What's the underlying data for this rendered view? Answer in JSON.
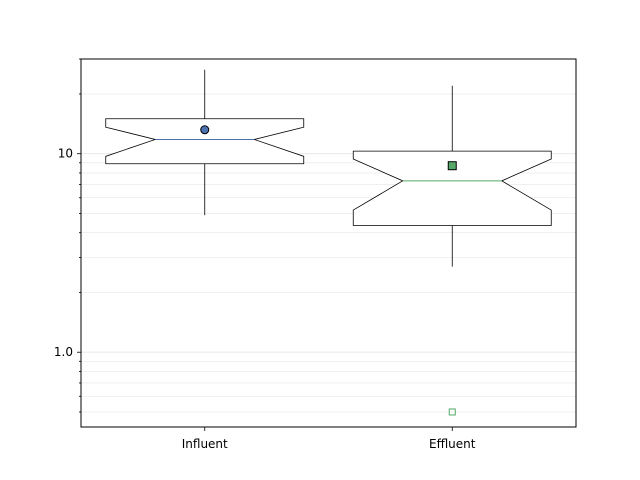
{
  "chart_data": {
    "type": "boxplot",
    "title": "",
    "xlabel": "",
    "ylabel": "",
    "yscale": "log",
    "ylim": [
      0.42,
      30
    ],
    "grid": {
      "y_major": true,
      "y_minor": true,
      "x": false
    },
    "legend": "none",
    "categories": [
      "Influent",
      "Effluent"
    ],
    "yticks": [
      {
        "value": 1.0,
        "label": "1.0"
      },
      {
        "value": 10,
        "label": "10"
      }
    ],
    "boxes": [
      {
        "name": "Influent",
        "whisker_low": 4.9,
        "q1": 8.9,
        "median": 11.8,
        "q3": 15.0,
        "whisker_high": 26.5,
        "notch_low": 9.7,
        "notch_high": 13.6,
        "mean": 13.2,
        "mean_marker": "circle",
        "outliers": [],
        "outlier_marker": "none",
        "color": "#4c72b0"
      },
      {
        "name": "Effluent",
        "whisker_low": 2.7,
        "q1": 4.35,
        "median": 7.3,
        "q3": 10.3,
        "whisker_high": 22.0,
        "notch_low": 5.2,
        "notch_high": 9.4,
        "mean": 8.7,
        "mean_marker": "square",
        "outliers": [
          0.5
        ],
        "outlier_marker": "square-open",
        "color": "#55a868"
      }
    ]
  },
  "colors": {
    "influent": "#4c72b0",
    "effluent": "#55a868",
    "mean_fill_influent": "#4c72b0",
    "mean_fill_effluent": "#55a868",
    "grid": "#e6e6e6",
    "axis": "#000000"
  }
}
